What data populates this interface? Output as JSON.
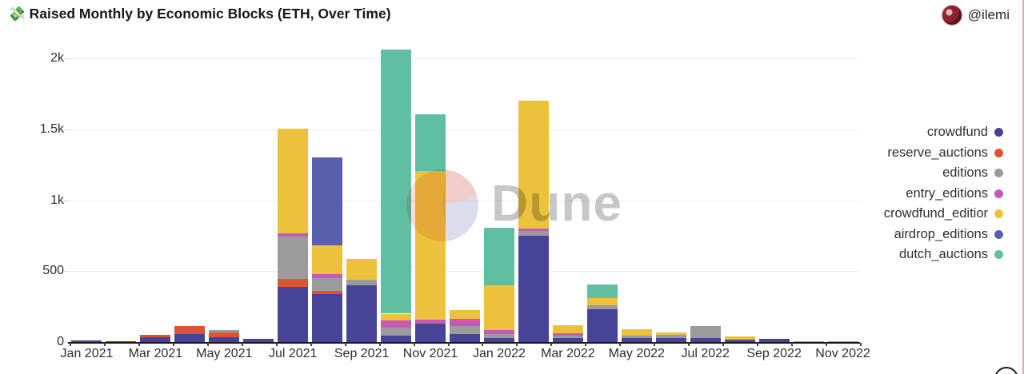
{
  "header": {
    "title": "💸 Raised Monthly by Economic Blocks (ETH, Over Time)",
    "author": "@ilemi"
  },
  "watermark": {
    "text": "Dune"
  },
  "legend": [
    {
      "label": "crowdfund",
      "color": "#474396"
    },
    {
      "label": "reserve_auctions",
      "color": "#e0532f"
    },
    {
      "label": "editions",
      "color": "#9b9b9b"
    },
    {
      "label": "entry_editions",
      "color": "#c45ab4"
    },
    {
      "label": "crowdfund_editior",
      "color": "#ecc23d"
    },
    {
      "label": "airdrop_editions",
      "color": "#5a5fad"
    },
    {
      "label": "dutch_auctions",
      "color": "#60bfa3"
    }
  ],
  "chart_data": {
    "type": "bar",
    "stacked": true,
    "title": "Raised Monthly by Economic Blocks (ETH, Over Time)",
    "xlabel": "",
    "ylabel": "",
    "ylim": [
      0,
      2100
    ],
    "grid": "horizontal",
    "legend_position": "right",
    "x": [
      "Jan 2021",
      "Feb 2021",
      "Mar 2021",
      "Apr 2021",
      "May 2021",
      "Jun 2021",
      "Jul 2021",
      "Aug 2021",
      "Sep 2021",
      "Oct 2021",
      "Nov 2021",
      "Dec 2021",
      "Jan 2022",
      "Feb 2022",
      "Mar 2022",
      "Apr 2022",
      "May 2022",
      "Jun 2022",
      "Jul 2022",
      "Aug 2022",
      "Sep 2022",
      "Oct 2022",
      "Nov 2022"
    ],
    "x_labels_shown": [
      "Jan 2021",
      "Mar 2021",
      "May 2021",
      "Jul 2021",
      "Sep 2021",
      "Nov 2021",
      "Jan 2022",
      "Mar 2022",
      "May 2022",
      "Jul 2022",
      "Sep 2022",
      "Nov 2022"
    ],
    "y_ticks": [
      {
        "label": "0",
        "value": 0
      },
      {
        "label": "500",
        "value": 500
      },
      {
        "label": "1k",
        "value": 1000
      },
      {
        "label": "1.5k",
        "value": 1500
      },
      {
        "label": "2k",
        "value": 2000
      }
    ],
    "series": [
      {
        "name": "crowdfund",
        "color": "#474396",
        "values": [
          10,
          2,
          35,
          55,
          35,
          20,
          390,
          340,
          400,
          45,
          130,
          56,
          30,
          750,
          28,
          230,
          28,
          28,
          30,
          15,
          21,
          0,
          0
        ]
      },
      {
        "name": "reserve_auctions",
        "color": "#e0532f",
        "values": [
          0,
          0,
          13,
          55,
          34,
          0,
          55,
          22,
          0,
          0,
          0,
          0,
          0,
          0,
          0,
          0,
          0,
          0,
          0,
          0,
          0,
          0,
          0
        ]
      },
      {
        "name": "editions",
        "color": "#9b9b9b",
        "values": [
          0,
          0,
          0,
          0,
          13,
          0,
          300,
          90,
          40,
          55,
          0,
          56,
          28,
          35,
          17,
          28,
          17,
          22,
          80,
          0,
          0,
          4,
          3
        ]
      },
      {
        "name": "entry_editions",
        "color": "#c45ab4",
        "values": [
          0,
          0,
          0,
          0,
          0,
          0,
          22,
          28,
          0,
          50,
          30,
          50,
          28,
          15,
          18,
          0,
          0,
          0,
          0,
          0,
          0,
          0,
          0
        ]
      },
      {
        "name": "crowdfund_editior",
        "color": "#ecc23d",
        "values": [
          0,
          0,
          0,
          0,
          0,
          0,
          735,
          200,
          148,
          50,
          1045,
          62,
          312,
          900,
          57,
          50,
          45,
          17,
          0,
          26,
          0,
          0,
          0
        ]
      },
      {
        "name": "airdrop_editions",
        "color": "#5a5fad",
        "values": [
          0,
          0,
          0,
          0,
          0,
          0,
          0,
          620,
          0,
          0,
          0,
          0,
          0,
          0,
          0,
          0,
          0,
          0,
          0,
          0,
          0,
          0,
          0
        ]
      },
      {
        "name": "dutch_auctions",
        "color": "#60bfa3",
        "values": [
          0,
          0,
          0,
          0,
          0,
          0,
          0,
          0,
          0,
          1860,
          400,
          0,
          410,
          0,
          0,
          100,
          0,
          0,
          0,
          0,
          0,
          0,
          0
        ]
      }
    ]
  }
}
